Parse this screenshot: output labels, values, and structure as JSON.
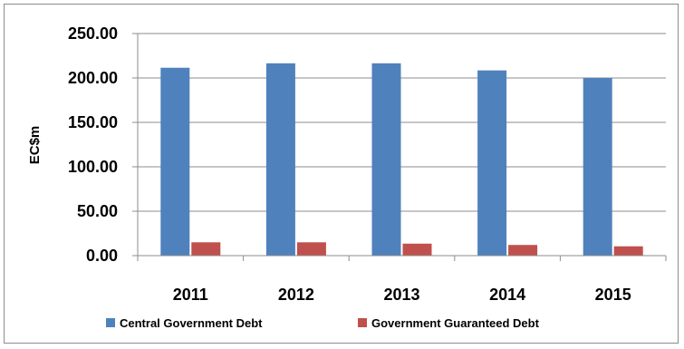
{
  "chart_data": {
    "type": "bar",
    "title": "",
    "xlabel": "",
    "ylabel": "EC$m",
    "categories": [
      "2011",
      "2012",
      "2013",
      "2014",
      "2015"
    ],
    "series": [
      {
        "name": "Central Government Debt",
        "color": "#4f81bd",
        "values": [
          211.5,
          216.5,
          216.5,
          208.5,
          200.0
        ]
      },
      {
        "name": "Government Guaranteed Debt",
        "color": "#c0504d",
        "values": [
          15.0,
          15.0,
          13.5,
          12.0,
          10.5
        ]
      }
    ],
    "ylim": [
      0,
      250
    ],
    "yticks": [
      "0.00",
      "50.00",
      "100.00",
      "150.00",
      "200.00",
      "250.00"
    ],
    "ytick_values": [
      0,
      50,
      100,
      150,
      200,
      250
    ],
    "grid": true,
    "legend_position": "bottom"
  }
}
